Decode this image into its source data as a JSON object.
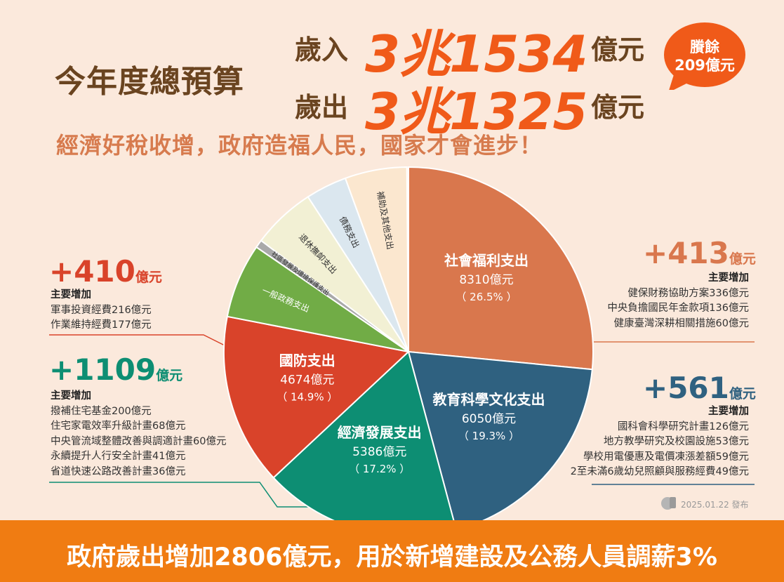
{
  "header": {
    "title": "今年度總預算",
    "revenue_label": "歲入",
    "revenue_amount": "3兆1534",
    "expenditure_label": "歲出",
    "expenditure_amount": "3兆1325",
    "unit": "億元",
    "surplus_line1": "賸餘",
    "surplus_line2": "209億元",
    "slogan": "經濟好稅收增，政府造福人民，國家才會進步！"
  },
  "chart_data": {
    "type": "pie",
    "unit": "億元",
    "slices": [
      {
        "label": "社會福利支出",
        "value": 8310,
        "value_text": "8310億元",
        "percent_text": "（ 26.5% ）",
        "color": "#d9774d"
      },
      {
        "label": "教育科學文化支出",
        "value": 6050,
        "value_text": "6050億元",
        "percent_text": "（ 19.3% ）",
        "color": "#2f6180"
      },
      {
        "label": "經濟發展支出",
        "value": 5386,
        "value_text": "5386億元",
        "percent_text": "（ 17.2% ）",
        "color": "#0d8e73"
      },
      {
        "label": "國防支出",
        "value": 4674,
        "value_text": "4674億元",
        "percent_text": "（ 14.9% ）",
        "color": "#d9432a"
      },
      {
        "label": "一般政務支出",
        "color": "#71ac46"
      },
      {
        "label": "社區發展及環境保護支出",
        "color": "#a9a9a9"
      },
      {
        "label": "退休撫卹支出",
        "color": "#f2f0d4"
      },
      {
        "label": "債務支出",
        "color": "#dbe7ef"
      },
      {
        "label": "補助及其他支出",
        "color": "#fbe7cf"
      }
    ]
  },
  "increases": [
    {
      "amount": "+413",
      "unit": "億元",
      "color": "#d9774d",
      "heading": "主要增加",
      "items": [
        "健保財務協助方案336億元",
        "中央負擔國民年金款項136億元",
        "健康臺灣深耕相關措施60億元"
      ]
    },
    {
      "amount": "+561",
      "unit": "億元",
      "color": "#2f6180",
      "heading": "主要增加",
      "items": [
        "國科會科學研究計畫126億元",
        "地方教學研究及校園設施53億元",
        "學校用電優惠及電價凍漲差額59億元",
        "2至未滿6歲幼兒照顧與服務經費49億元"
      ]
    },
    {
      "amount": "+410",
      "unit": "億元",
      "color": "#d9432a",
      "heading": "主要增加",
      "items": [
        "軍事投資經費216億元",
        "作業維持經費177億元"
      ]
    },
    {
      "amount": "+1109",
      "unit": "億元",
      "color": "#0d8e73",
      "heading": "主要增加",
      "items": [
        "撥補住宅基金200億元",
        "住宅家電效率升級計畫68億元",
        "中央管流域整體改善與調適計畫60億元",
        "永續提升人行安全計畫41億元",
        "省道快速公路改善計畫36億元"
      ]
    }
  ],
  "footer": {
    "text": "政府歲出增加2806億元，用於新增建設及公務人員調薪3%",
    "published": "2025.01.22 發布"
  }
}
